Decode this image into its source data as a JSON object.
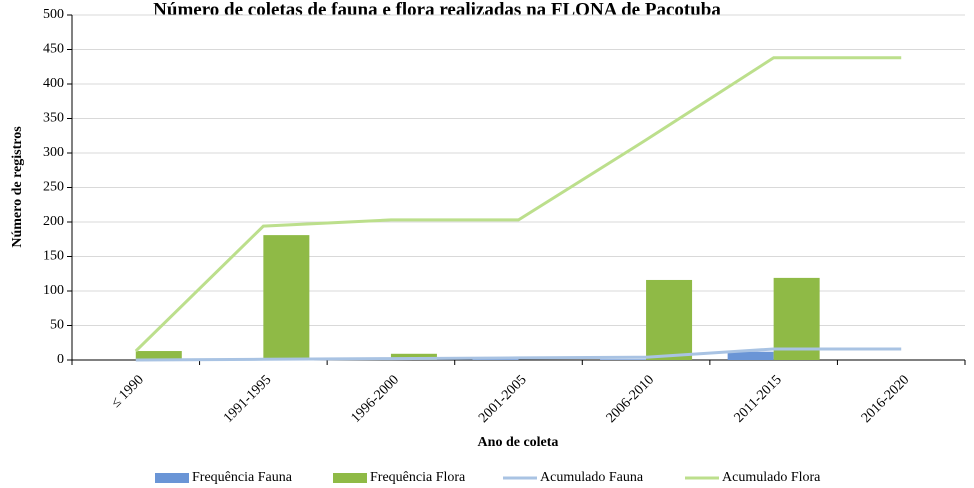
{
  "chart_data": {
    "type": "bar",
    "title": "Número de coletas de fauna e flora realizadas na FLONA de Pacotuba",
    "x_label": "Ano de coleta",
    "y_label": "Número de registros",
    "categories": [
      "≤ 1990",
      "1991-1995",
      "1996-2000",
      "2001-2005",
      "2006-2010",
      "2011-2015",
      "2016-2020"
    ],
    "series": [
      {
        "name": "Frequência Fauna",
        "type": "bar",
        "color": "#6a95d6",
        "values": [
          0,
          1,
          1,
          1,
          1,
          12,
          0
        ]
      },
      {
        "name": "Frequência Flora",
        "type": "bar",
        "color": "#8fba46",
        "values": [
          13,
          181,
          9,
          0,
          116,
          119,
          0
        ]
      },
      {
        "name": "Acumulado Fauna",
        "type": "line",
        "color": "#a9c3e3",
        "values": [
          0,
          1,
          2,
          3,
          4,
          16,
          16
        ]
      },
      {
        "name": "Acumulado Flora",
        "type": "line",
        "color": "#bcdf8c",
        "values": [
          13,
          194,
          203,
          203,
          319,
          438,
          438
        ]
      }
    ],
    "ylim": [
      0,
      500
    ],
    "yticks": [
      0,
      50,
      100,
      150,
      200,
      250,
      300,
      350,
      400,
      450,
      500
    ],
    "grid": true
  }
}
